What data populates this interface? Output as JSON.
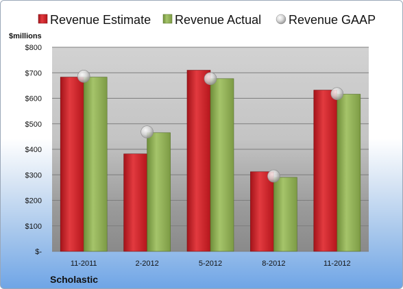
{
  "chart_data": {
    "type": "bar",
    "company": "Scholastic",
    "unit_label": "$millions",
    "categories": [
      "11-2011",
      "2-2012",
      "5-2012",
      "8-2012",
      "11-2012"
    ],
    "series": [
      {
        "name": "Revenue Estimate",
        "kind": "bar",
        "color": "#cc1f26",
        "values": [
          683,
          382,
          710,
          312,
          632
        ]
      },
      {
        "name": "Revenue Actual",
        "kind": "bar",
        "color": "#8cab52",
        "values": [
          683,
          465,
          677,
          290,
          616
        ]
      },
      {
        "name": "Revenue GAAP",
        "kind": "marker",
        "color": "#c9c9c9",
        "values": [
          686,
          468,
          677,
          295,
          618
        ]
      }
    ],
    "y_ticks": [
      0,
      100,
      200,
      300,
      400,
      500,
      600,
      700,
      800
    ],
    "y_tick_labels": [
      "$-",
      "$100",
      "$200",
      "$300",
      "$400",
      "$500",
      "$600",
      "$700",
      "$800"
    ],
    "ylim": [
      0,
      800
    ],
    "grid": true,
    "legend_position": "top"
  }
}
